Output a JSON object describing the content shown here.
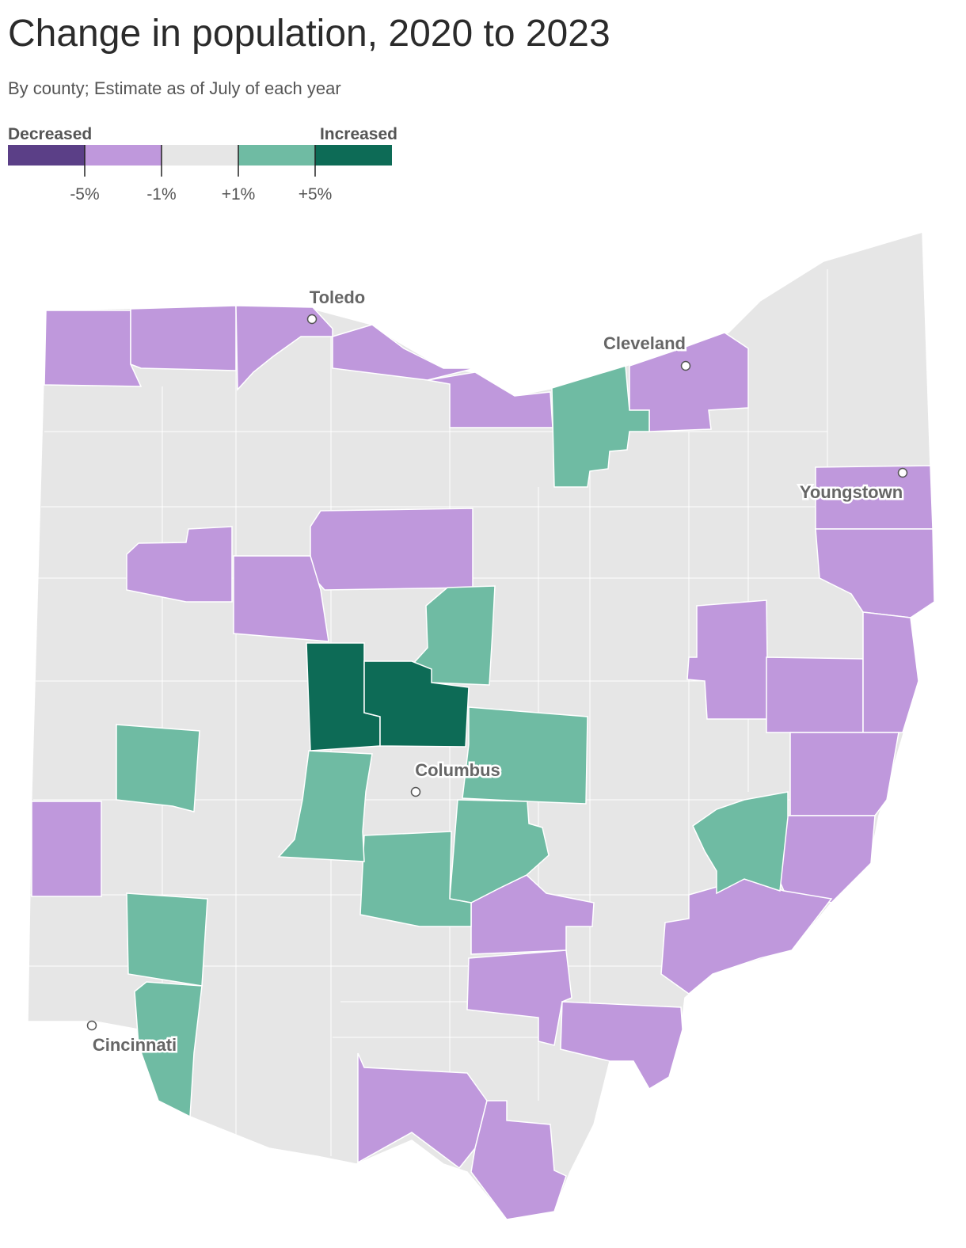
{
  "title": "Change in population, 2020 to 2023",
  "subtitle": "By county; Estimate as of July of each year",
  "legend": {
    "low_label": "Decreased",
    "high_label": "Increased",
    "colors": [
      "#5b3f87",
      "#bf98dc",
      "#e6e6e6",
      "#6fbba3",
      "#0d6b56"
    ],
    "ticks": [
      {
        "value": -5,
        "label": "-5%"
      },
      {
        "value": -1,
        "label": "-1%"
      },
      {
        "value": 1,
        "label": "+1%"
      },
      {
        "value": 5,
        "label": "+5%"
      }
    ]
  },
  "cities": [
    "Toledo",
    "Cleveland",
    "Youngstown",
    "Columbus",
    "Cincinnati"
  ]
}
